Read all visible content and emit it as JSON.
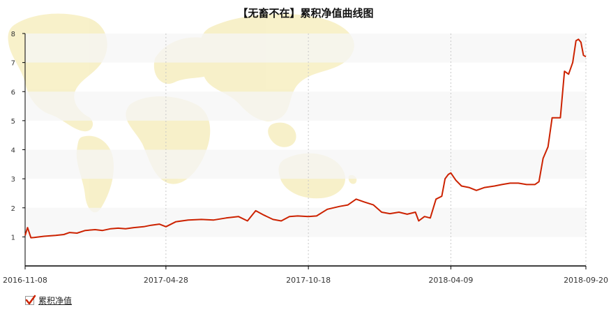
{
  "chart_data": {
    "type": "line",
    "title": "【无畜不在】累积净值曲线图",
    "xlabel": "",
    "ylabel": "",
    "ylim": [
      0,
      8
    ],
    "yticks": [
      1,
      2,
      3,
      4,
      5,
      6,
      7,
      8
    ],
    "xlim": [
      "2016-11-08",
      "2018-09-20"
    ],
    "xticks": [
      "2016-11-08",
      "2017-04-28",
      "2017-10-18",
      "2018-04-09",
      "2018-09-20"
    ],
    "grid": {
      "x": "dotted",
      "y": "alternating bands"
    },
    "legend_position": "bottom-left",
    "colors": {
      "line": "#cc2200",
      "band": "#f5f5f5",
      "map": "#f7efc4"
    },
    "series": [
      {
        "name": "累积净值",
        "x": [
          "2016-11-08",
          "2016-11-11",
          "2016-11-15",
          "2016-11-19",
          "2016-12-01",
          "2016-12-15",
          "2016-12-25",
          "2017-01-01",
          "2017-01-10",
          "2017-01-20",
          "2017-02-01",
          "2017-02-10",
          "2017-02-20",
          "2017-03-01",
          "2017-03-10",
          "2017-03-20",
          "2017-04-01",
          "2017-04-10",
          "2017-04-20",
          "2017-04-28",
          "2017-05-10",
          "2017-05-25",
          "2017-06-10",
          "2017-06-25",
          "2017-07-10",
          "2017-07-25",
          "2017-08-05",
          "2017-08-15",
          "2017-08-25",
          "2017-09-05",
          "2017-09-15",
          "2017-09-25",
          "2017-10-05",
          "2017-10-18",
          "2017-10-28",
          "2017-11-10",
          "2017-11-25",
          "2017-12-05",
          "2017-12-15",
          "2017-12-25",
          "2018-01-05",
          "2018-01-15",
          "2018-01-25",
          "2018-02-05",
          "2018-02-15",
          "2018-02-25",
          "2018-03-01",
          "2018-03-08",
          "2018-03-15",
          "2018-03-22",
          "2018-03-29",
          "2018-04-02",
          "2018-04-06",
          "2018-04-09",
          "2018-04-15",
          "2018-04-22",
          "2018-05-01",
          "2018-05-10",
          "2018-05-20",
          "2018-06-01",
          "2018-06-10",
          "2018-06-20",
          "2018-06-30",
          "2018-07-10",
          "2018-07-20",
          "2018-07-25",
          "2018-07-30",
          "2018-08-05",
          "2018-08-10",
          "2018-08-15",
          "2018-08-20",
          "2018-08-25",
          "2018-08-30",
          "2018-09-04",
          "2018-09-08",
          "2018-09-11",
          "2018-09-14",
          "2018-09-17",
          "2018-09-20"
        ],
        "values": [
          1.05,
          1.32,
          0.97,
          0.98,
          1.02,
          1.05,
          1.08,
          1.15,
          1.13,
          1.22,
          1.25,
          1.22,
          1.28,
          1.3,
          1.28,
          1.32,
          1.35,
          1.4,
          1.44,
          1.35,
          1.52,
          1.58,
          1.6,
          1.58,
          1.65,
          1.7,
          1.55,
          1.9,
          1.75,
          1.6,
          1.55,
          1.7,
          1.72,
          1.7,
          1.72,
          1.95,
          2.05,
          2.1,
          2.3,
          2.2,
          2.1,
          1.85,
          1.8,
          1.85,
          1.78,
          1.85,
          1.55,
          1.7,
          1.65,
          2.3,
          2.4,
          3.0,
          3.15,
          3.2,
          2.95,
          2.75,
          2.7,
          2.6,
          2.7,
          2.75,
          2.8,
          2.85,
          2.85,
          2.8,
          2.8,
          2.9,
          3.7,
          4.1,
          5.1,
          5.1,
          5.1,
          6.7,
          6.6,
          7.0,
          7.75,
          7.8,
          7.7,
          7.25,
          7.2
        ]
      }
    ]
  },
  "legend": {
    "label": "累积净值"
  }
}
